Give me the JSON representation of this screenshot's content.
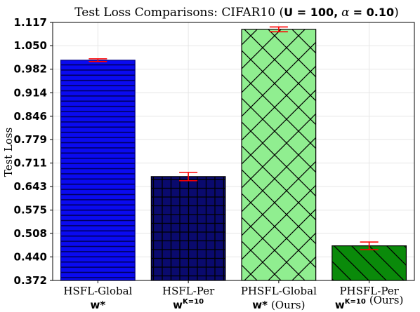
{
  "chart_data": {
    "type": "bar",
    "title": {
      "prefix": "Test Loss Comparisons: CIFAR10 (",
      "u_part": "U = 100,",
      "alpha_symbol": "α",
      "alpha_part": "= 0.10",
      "suffix": ")"
    },
    "ylabel": "Test Loss",
    "ylim": [
      0.372,
      1.117
    ],
    "yticks": [
      "0.372",
      "0.440",
      "0.508",
      "0.575",
      "0.643",
      "0.711",
      "0.779",
      "0.846",
      "0.914",
      "0.982",
      "1.050",
      "1.117"
    ],
    "grid": true,
    "categories": [
      {
        "name": "HSFL-Global",
        "sub_symbol": "w*",
        "sub_sup": "",
        "sub_suffix": "",
        "value": 1.008,
        "err": 0.004,
        "color": "#0a0af0",
        "edge": "#000080",
        "hatch": "horizontal"
      },
      {
        "name": "HSFL-Per",
        "sub_symbol": "w",
        "sub_sup": "K=10",
        "sub_suffix": "",
        "value": 0.672,
        "err": 0.012,
        "color": "#0a0a6e",
        "edge": "#000000",
        "hatch": "grid"
      },
      {
        "name": "PHSFL-Global",
        "sub_symbol": "w*",
        "sub_sup": "",
        "sub_suffix": "(Ours)",
        "value": 1.097,
        "err": 0.007,
        "color": "#90ee90",
        "edge": "#000000",
        "hatch": "crosshatch"
      },
      {
        "name": "PHSFL-Per",
        "sub_symbol": "w",
        "sub_sup": "K=10",
        "sub_suffix": "(Ours)",
        "value": 0.472,
        "err": 0.011,
        "color": "#0a8a0a",
        "edge": "#000000",
        "hatch": "diagonal"
      }
    ],
    "errorbar_color": "#ff0000"
  }
}
